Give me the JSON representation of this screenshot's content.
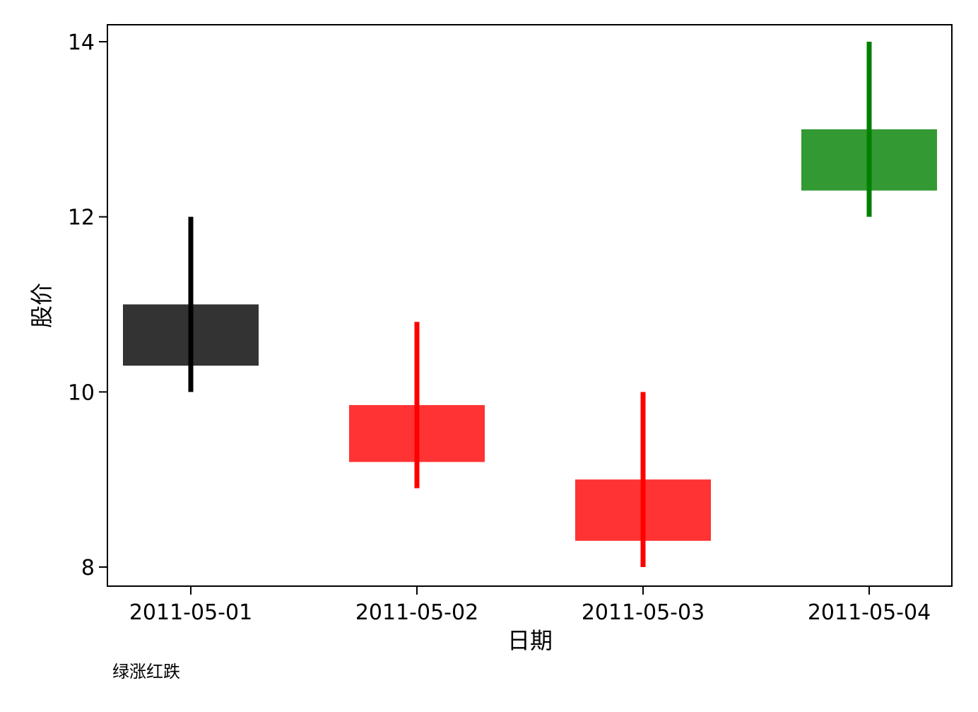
{
  "chart_data": {
    "type": "candlestick",
    "title": "",
    "xlabel": "日期",
    "ylabel": "股价",
    "note": "绿涨红跌",
    "categories": [
      "2011-05-01",
      "2011-05-02",
      "2011-05-03",
      "2011-05-04"
    ],
    "candles": [
      {
        "date": "2011-05-01",
        "box": [
          10.3,
          11.0
        ],
        "range": [
          10.0,
          12.0
        ],
        "status": "neutral"
      },
      {
        "date": "2011-05-02",
        "box": [
          9.2,
          9.85
        ],
        "range": [
          8.9,
          10.8
        ],
        "status": "down"
      },
      {
        "date": "2011-05-03",
        "box": [
          8.3,
          9.0
        ],
        "range": [
          8.0,
          10.0
        ],
        "status": "down"
      },
      {
        "date": "2011-05-04",
        "box": [
          12.3,
          13.0
        ],
        "range": [
          12.0,
          14.0
        ],
        "status": "up"
      }
    ],
    "ylim": [
      7.8,
      14.2
    ],
    "yticks": [
      8,
      10,
      12,
      14
    ],
    "grid": false,
    "colors": {
      "neutral_body": "#333333",
      "neutral_wick": "#000000",
      "down_body": "#ff3333",
      "down_wick": "#ff0000",
      "up_body": "#339933",
      "up_wick": "#008000"
    }
  }
}
